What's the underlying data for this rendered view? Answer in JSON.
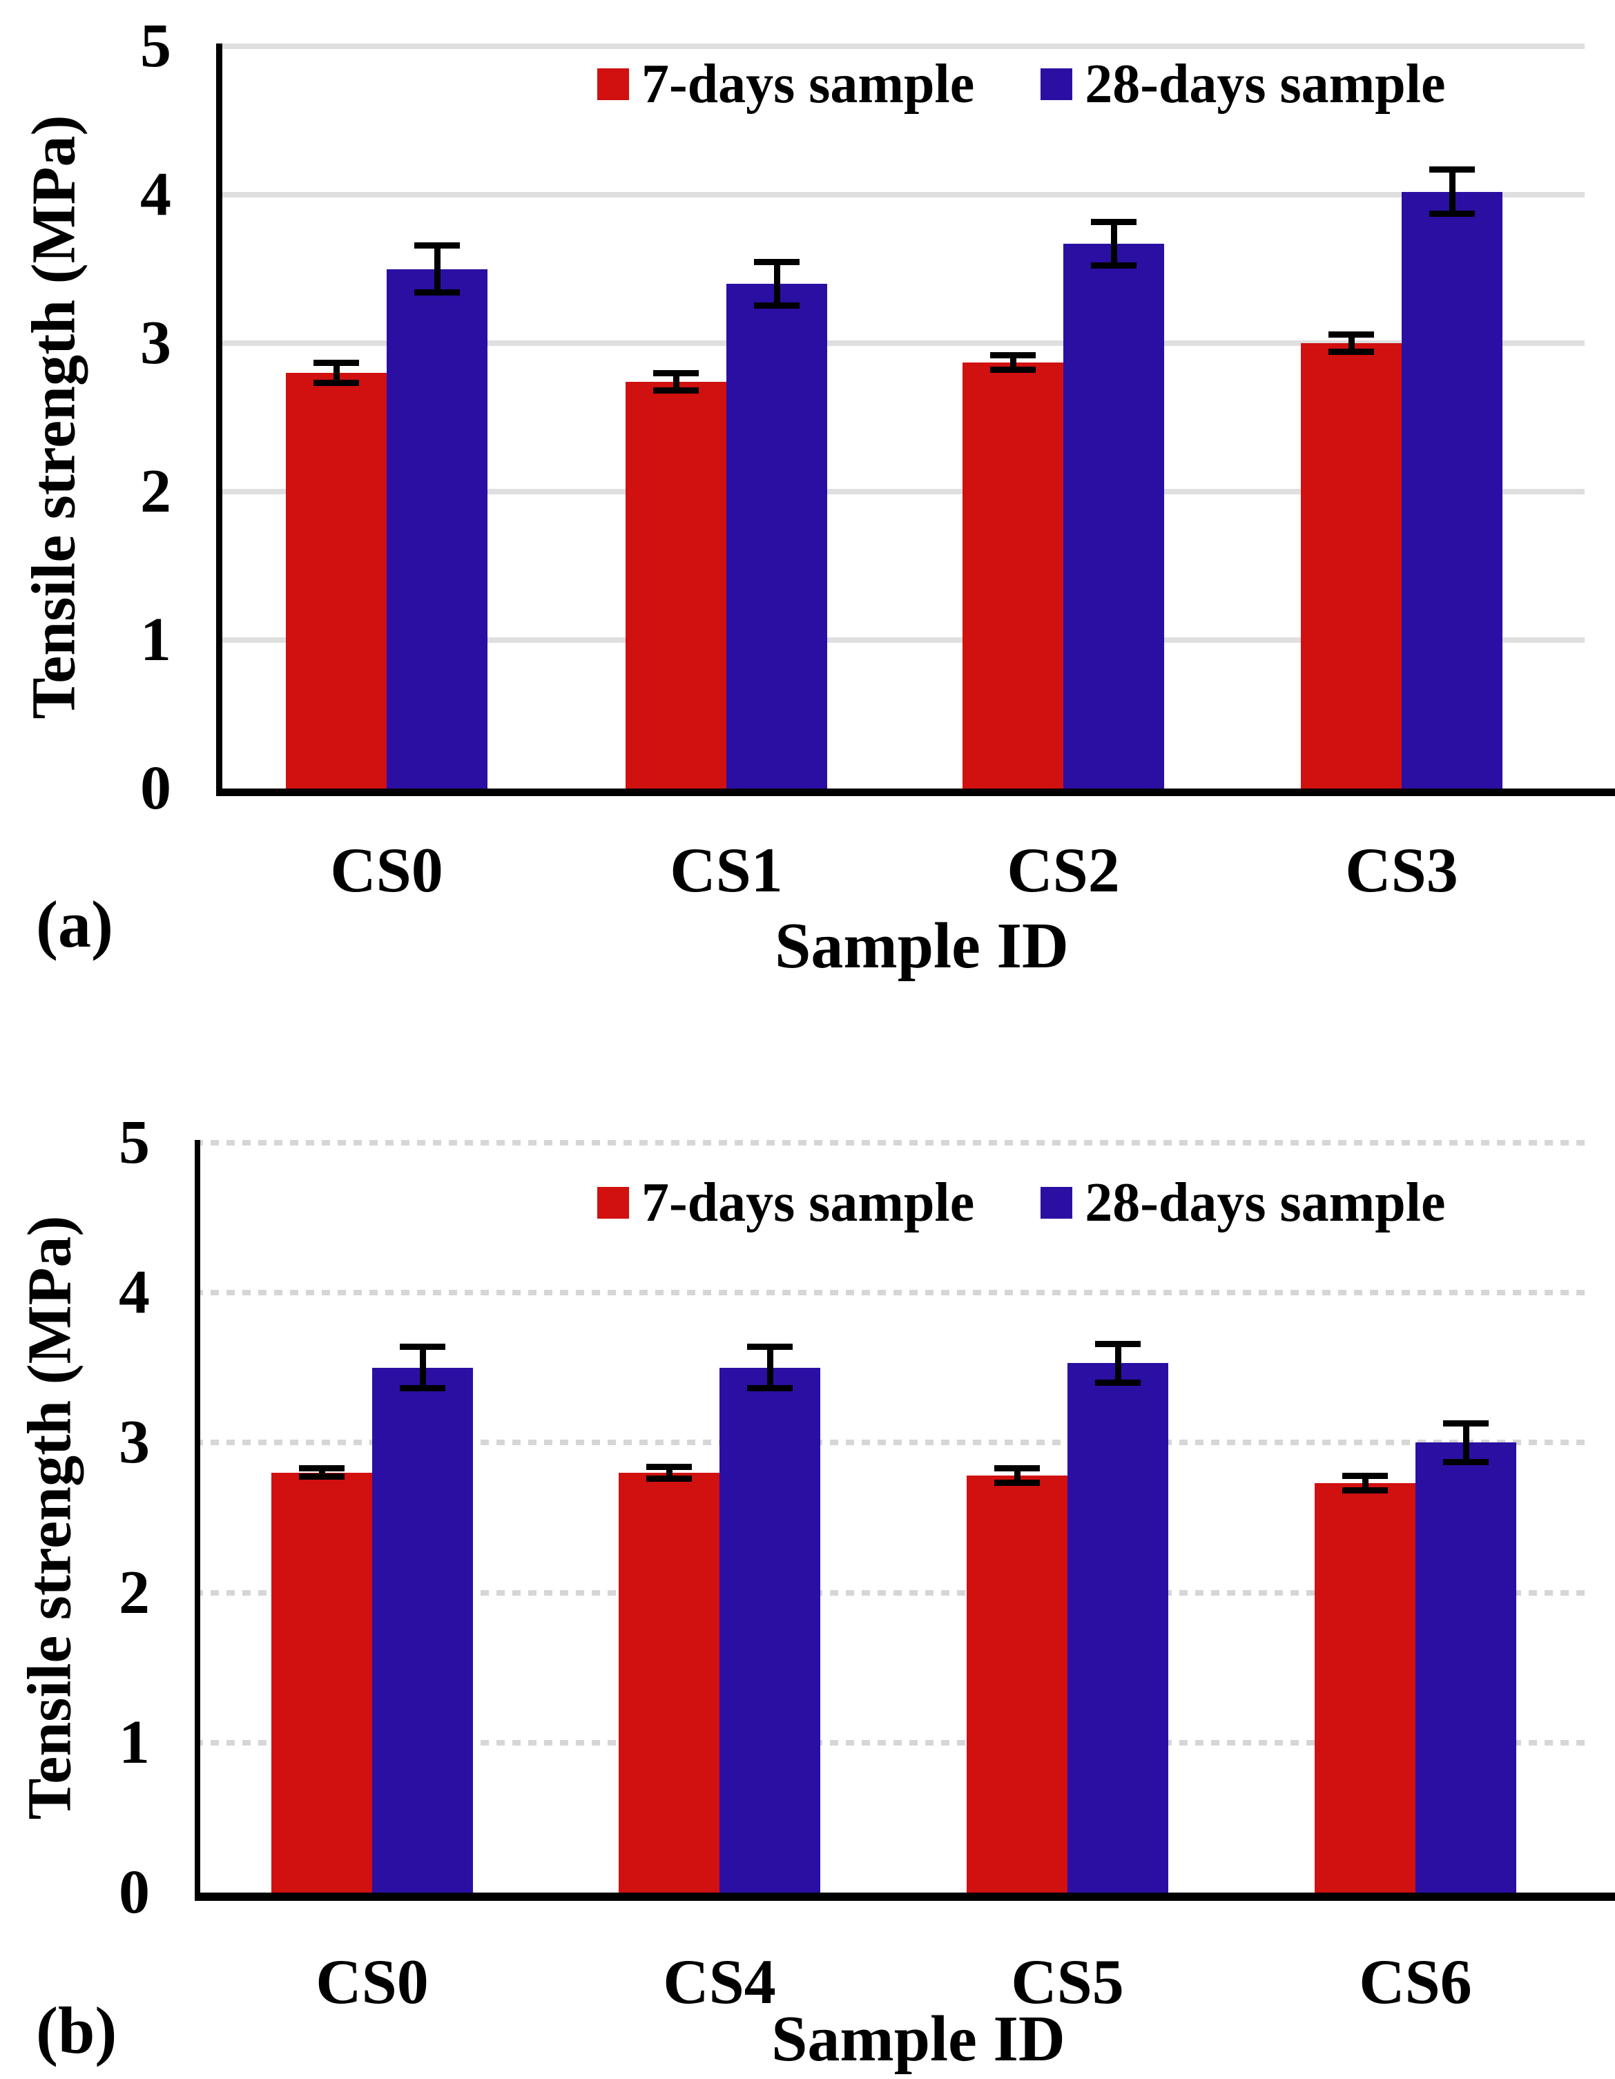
{
  "page": {
    "background": "#ffffff"
  },
  "colors": {
    "grid": "#dfdfdf",
    "axis": "#000000",
    "error_bar": "#000000",
    "series_7days": "#d11010",
    "series_28days": "#2b0fa3"
  },
  "chart_data": [
    {
      "id": "a",
      "type": "bar",
      "panel_label": "(a)",
      "xlabel": "Sample ID",
      "ylabel": "Tensile strength (MPa)",
      "ylim": [
        0,
        5
      ],
      "yticks": [
        0,
        1,
        2,
        3,
        4,
        5
      ],
      "grid": "solid",
      "legend_position": "top",
      "categories": [
        "CS0",
        "CS1",
        "CS2",
        "CS3"
      ],
      "series": [
        {
          "name": "7-days sample",
          "color": "#d11010",
          "values": [
            2.8,
            2.74,
            2.87,
            3.0
          ],
          "errors": [
            0.07,
            0.06,
            0.05,
            0.06
          ]
        },
        {
          "name": "28-days sample",
          "color": "#2b0fa3",
          "values": [
            3.5,
            3.4,
            3.67,
            4.02
          ],
          "errors": [
            0.16,
            0.15,
            0.15,
            0.15
          ]
        }
      ]
    },
    {
      "id": "b",
      "type": "bar",
      "panel_label": "(b)",
      "xlabel": "Sample ID",
      "ylabel": "Tensile strength (MPa)",
      "ylim": [
        0,
        5
      ],
      "yticks": [
        0,
        1,
        2,
        3,
        4,
        5
      ],
      "grid": "dotted",
      "legend_position": "top",
      "categories": [
        "CS0",
        "CS4",
        "CS5",
        "CS6"
      ],
      "series": [
        {
          "name": "7-days sample",
          "color": "#d11010",
          "values": [
            2.8,
            2.8,
            2.78,
            2.73
          ],
          "errors": [
            0.03,
            0.04,
            0.05,
            0.05
          ]
        },
        {
          "name": "28-days sample",
          "color": "#2b0fa3",
          "values": [
            3.5,
            3.5,
            3.53,
            3.0
          ],
          "errors": [
            0.14,
            0.14,
            0.13,
            0.13
          ]
        }
      ]
    }
  ]
}
